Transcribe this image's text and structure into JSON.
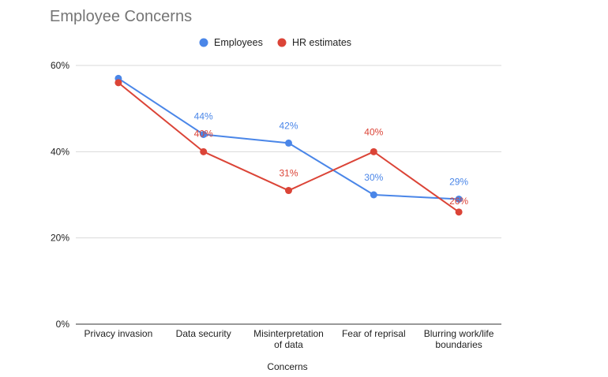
{
  "chart_data": {
    "type": "line",
    "title": "Employee Concerns",
    "xlabel": "Concerns",
    "ylabel": "",
    "ylim": [
      0,
      60
    ],
    "yticks": [
      "0%",
      "20%",
      "40%",
      "60%"
    ],
    "y_tick_values": [
      0,
      20,
      40,
      60
    ],
    "grid": true,
    "legend": "top",
    "categories": [
      [
        "Privacy invasion"
      ],
      [
        "Data security"
      ],
      [
        "Misinterpretation",
        "of data"
      ],
      [
        "Fear of reprisal"
      ],
      [
        "Blurring work/life",
        "boundaries"
      ]
    ],
    "series": [
      {
        "name": "Employees",
        "color": "#4a86e8",
        "values": [
          57,
          44,
          42,
          30,
          29
        ],
        "labels": [
          "",
          "44%",
          "42%",
          "30%",
          "29%"
        ]
      },
      {
        "name": "HR estimates",
        "color": "#db4437",
        "values": [
          56,
          40,
          31,
          40,
          26
        ],
        "labels": [
          "",
          "40%",
          "31%",
          "40%",
          "26%"
        ]
      }
    ]
  }
}
